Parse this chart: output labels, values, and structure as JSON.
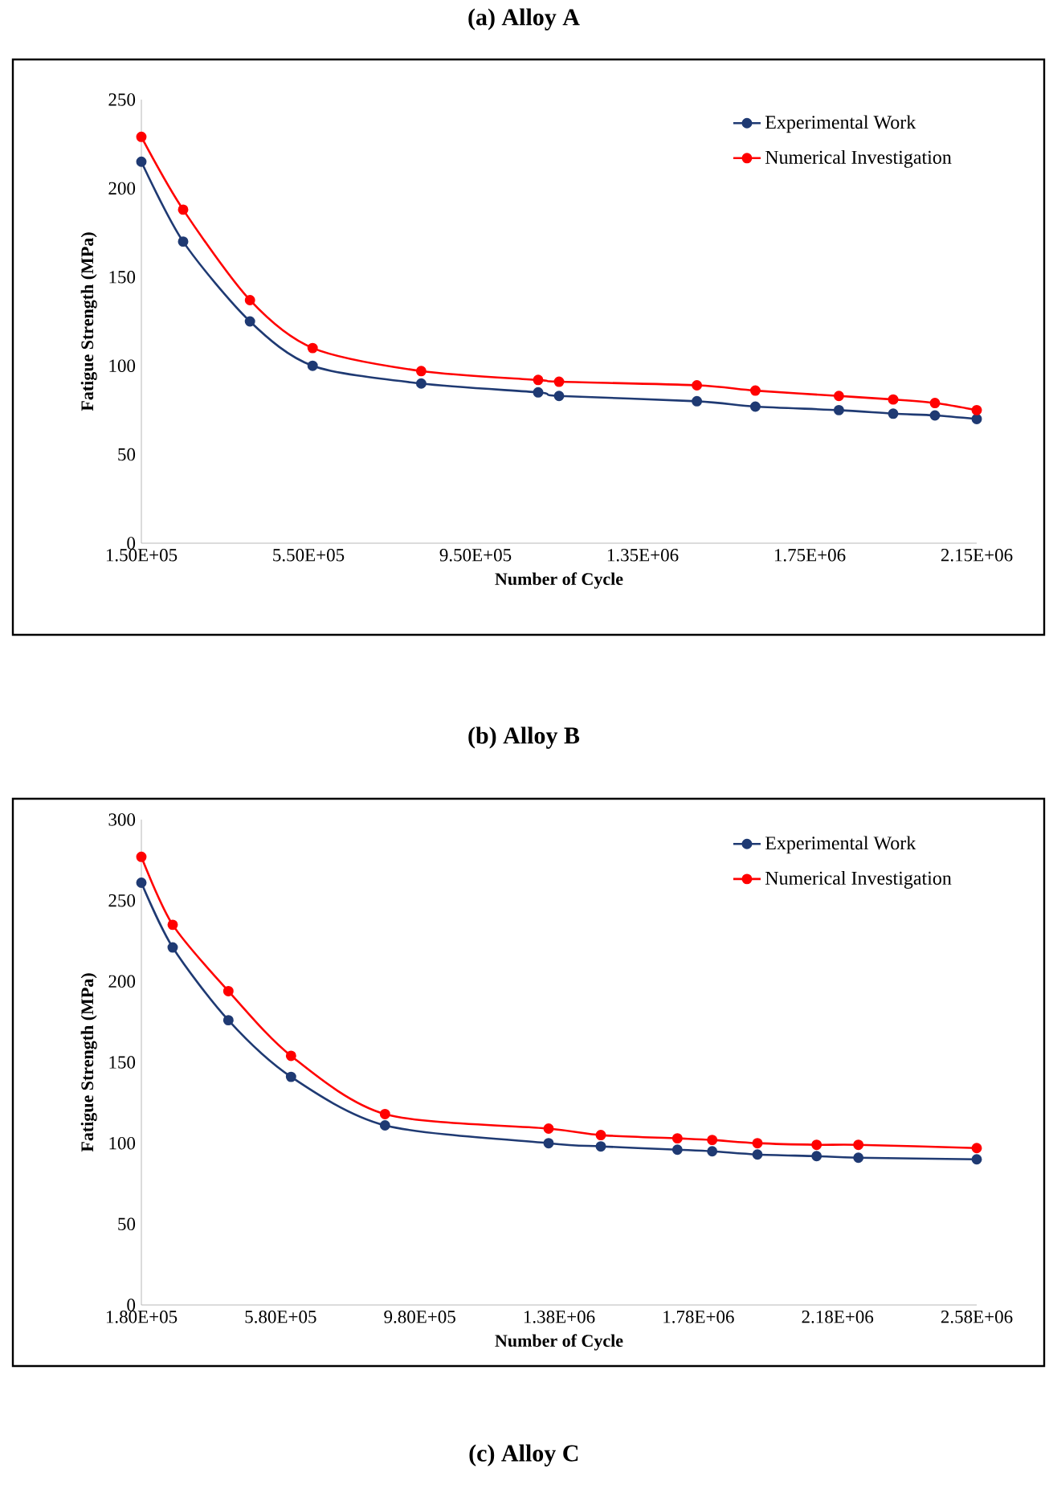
{
  "chart_data": [
    {
      "type": "line",
      "title": "(a) Alloy A",
      "xlabel": "Number of Cycle",
      "ylabel": "Fatigue Strength (MPa)",
      "xlim": [
        150000,
        2150000
      ],
      "xticks": [
        {
          "value": 150000,
          "label": "1.50E+05"
        },
        {
          "value": 550000,
          "label": "5.50E+05"
        },
        {
          "value": 950000,
          "label": "9.50E+05"
        },
        {
          "value": 1350000,
          "label": "1.35E+06"
        },
        {
          "value": 1750000,
          "label": "1.75E+06"
        },
        {
          "value": 2150000,
          "label": "2.15E+06"
        }
      ],
      "ylim": [
        0,
        250
      ],
      "yticks": [
        0,
        50,
        100,
        150,
        200,
        250
      ],
      "x": [
        150000,
        250000,
        410000,
        560000,
        820000,
        1100000,
        1150000,
        1480000,
        1620000,
        1820000,
        1950000,
        2050000,
        2150000
      ],
      "series": [
        {
          "name": "Experimental Work",
          "color": "#1f3a73",
          "values": [
            215,
            170,
            125,
            100,
            90,
            85,
            83,
            80,
            77,
            75,
            73,
            72,
            70
          ]
        },
        {
          "name": "Numerical Investigation",
          "color": "#ff0000",
          "values": [
            229,
            188,
            137,
            110,
            97,
            92,
            91,
            89,
            86,
            83,
            81,
            79,
            75
          ]
        }
      ],
      "legend": "top right",
      "marker": "circle",
      "line_style": "solid",
      "grid": false
    },
    {
      "type": "line",
      "title": "(b) Alloy B",
      "xlabel": "Number of Cycle",
      "ylabel": "Fatigue Strength (MPa)",
      "xlim": [
        180000,
        2580000
      ],
      "xticks": [
        {
          "value": 180000,
          "label": "1.80E+05"
        },
        {
          "value": 580000,
          "label": "5.80E+05"
        },
        {
          "value": 980000,
          "label": "9.80E+05"
        },
        {
          "value": 1380000,
          "label": "1.38E+06"
        },
        {
          "value": 1780000,
          "label": "1.78E+06"
        },
        {
          "value": 2180000,
          "label": "2.18E+06"
        },
        {
          "value": 2580000,
          "label": "2.58E+06"
        }
      ],
      "ylim": [
        0,
        300
      ],
      "yticks": [
        0,
        50,
        100,
        150,
        200,
        250,
        300
      ],
      "x": [
        180000,
        270000,
        430000,
        610000,
        880000,
        1350000,
        1500000,
        1720000,
        1820000,
        1950000,
        2120000,
        2240000,
        2580000
      ],
      "series": [
        {
          "name": "Experimental Work",
          "color": "#1f3a73",
          "values": [
            261,
            221,
            176,
            141,
            111,
            100,
            98,
            96,
            95,
            93,
            92,
            91,
            90
          ]
        },
        {
          "name": "Numerical Investigation",
          "color": "#ff0000",
          "values": [
            277,
            235,
            194,
            154,
            118,
            109,
            105,
            103,
            102,
            100,
            99,
            99,
            97
          ]
        }
      ],
      "legend": "top right",
      "marker": "circle",
      "line_style": "solid",
      "grid": false,
      "annotations": [
        "(c) Alloy C"
      ]
    }
  ]
}
